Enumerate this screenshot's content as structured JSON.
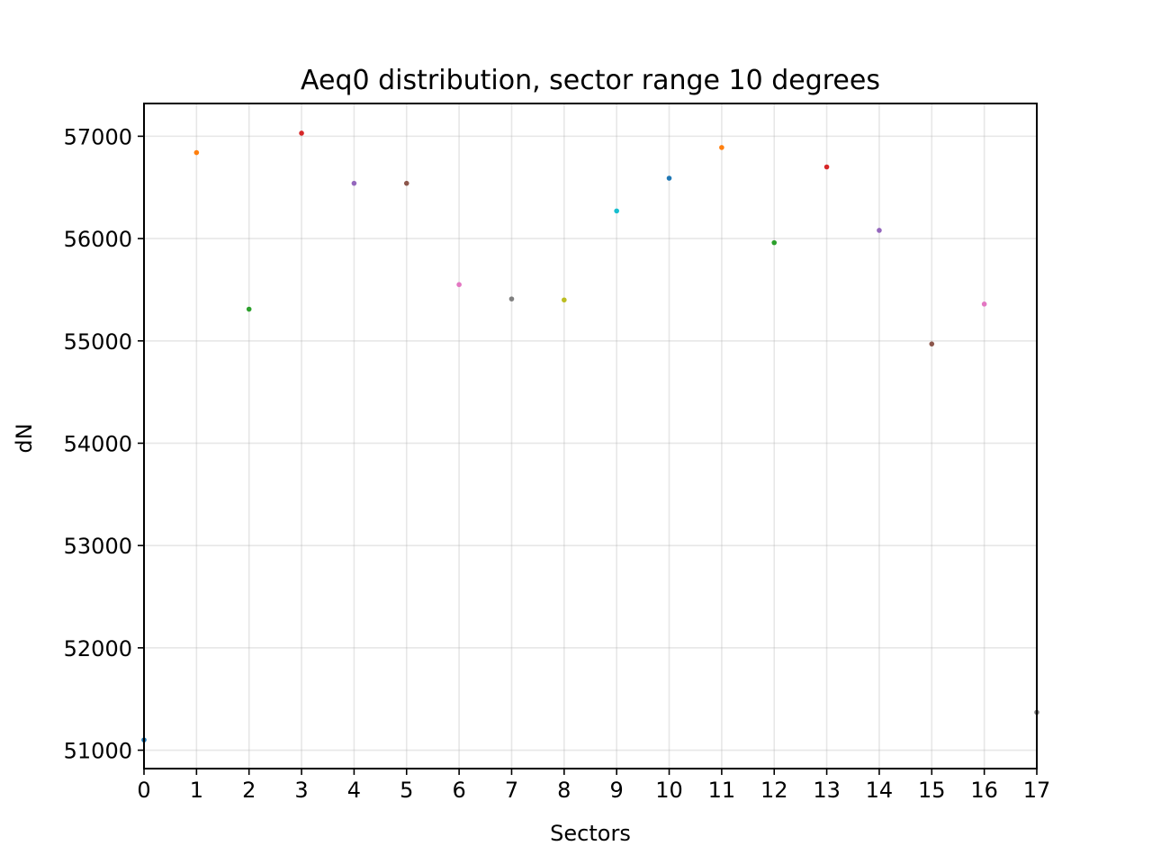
{
  "chart_data": {
    "type": "scatter",
    "title": "Aeq0 distribution, sector range 10 degrees",
    "xlabel": "Sectors",
    "ylabel": "dN",
    "xlim": [
      0,
      17
    ],
    "ylim": [
      50820,
      57320
    ],
    "grid": true,
    "xticks": [
      0,
      1,
      2,
      3,
      4,
      5,
      6,
      7,
      8,
      9,
      10,
      11,
      12,
      13,
      14,
      15,
      16,
      17
    ],
    "xtick_labels": [
      "0",
      "1",
      "2",
      "3",
      "4",
      "5",
      "6",
      "7",
      "8",
      "9",
      "10",
      "11",
      "12",
      "13",
      "14",
      "15",
      "16",
      "17"
    ],
    "yticks": [
      51000,
      52000,
      53000,
      54000,
      55000,
      56000,
      57000
    ],
    "ytick_labels": [
      "51000",
      "52000",
      "53000",
      "54000",
      "55000",
      "56000",
      "57000"
    ],
    "points": [
      {
        "x": 0,
        "y": 51100,
        "color": "#1f77b4"
      },
      {
        "x": 1,
        "y": 56840,
        "color": "#ff7f0e"
      },
      {
        "x": 2,
        "y": 55310,
        "color": "#2ca02c"
      },
      {
        "x": 3,
        "y": 57030,
        "color": "#d62728"
      },
      {
        "x": 4,
        "y": 56540,
        "color": "#9467bd"
      },
      {
        "x": 5,
        "y": 56540,
        "color": "#8c564b"
      },
      {
        "x": 6,
        "y": 55550,
        "color": "#e377c2"
      },
      {
        "x": 7,
        "y": 55410,
        "color": "#7f7f7f"
      },
      {
        "x": 8,
        "y": 55400,
        "color": "#bcbd22"
      },
      {
        "x": 9,
        "y": 56270,
        "color": "#17becf"
      },
      {
        "x": 10,
        "y": 56590,
        "color": "#1f77b4"
      },
      {
        "x": 11,
        "y": 56890,
        "color": "#ff7f0e"
      },
      {
        "x": 12,
        "y": 55960,
        "color": "#2ca02c"
      },
      {
        "x": 13,
        "y": 56700,
        "color": "#d62728"
      },
      {
        "x": 14,
        "y": 56080,
        "color": "#9467bd"
      },
      {
        "x": 15,
        "y": 54970,
        "color": "#8c564b"
      },
      {
        "x": 16,
        "y": 55360,
        "color": "#e377c2"
      },
      {
        "x": 17,
        "y": 51370,
        "color": "#7f7f7f"
      }
    ]
  }
}
